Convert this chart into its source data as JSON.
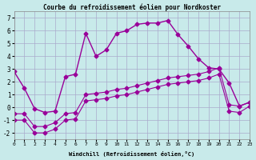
{
  "title": "Courbe du refroidissement éolien pour Nordkoster",
  "xlabel": "Windchill (Refroidissement éolien,°C)",
  "ylabel": "",
  "xlim": [
    0,
    23
  ],
  "ylim": [
    -2.5,
    7.5
  ],
  "xticks": [
    0,
    1,
    2,
    3,
    4,
    5,
    6,
    7,
    8,
    9,
    10,
    11,
    12,
    13,
    14,
    15,
    16,
    17,
    18,
    19,
    20,
    21,
    22,
    23
  ],
  "yticks": [
    -2,
    -1,
    0,
    1,
    2,
    3,
    4,
    5,
    6,
    7
  ],
  "bg_color": "#c8eaea",
  "grid_color": "#aaaacc",
  "line_color": "#990099",
  "main_x": [
    0,
    1,
    2,
    3,
    4,
    5,
    6,
    7,
    8,
    9,
    10,
    11,
    12,
    13,
    14,
    15,
    16,
    17,
    18,
    19,
    20,
    21,
    22,
    23
  ],
  "main_y": [
    2.8,
    1.5,
    -0.1,
    -0.4,
    -0.3,
    2.4,
    2.6,
    5.8,
    4.0,
    4.5,
    5.8,
    6.0,
    6.5,
    6.6,
    6.6,
    6.8,
    5.7,
    4.8,
    3.8,
    3.1,
    3.0,
    1.9,
    0.1,
    0.4
  ],
  "line2_x": [
    0,
    1,
    2,
    3,
    4,
    5,
    6,
    7,
    8,
    9,
    10,
    11,
    12,
    13,
    14,
    15,
    16,
    17,
    18,
    19,
    20,
    21,
    22,
    23
  ],
  "line2_y": [
    -0.5,
    -0.5,
    -1.5,
    -1.5,
    -1.2,
    -0.5,
    -0.4,
    1.0,
    1.1,
    1.2,
    1.4,
    1.5,
    1.7,
    1.9,
    2.1,
    2.3,
    2.4,
    2.5,
    2.6,
    2.8,
    3.1,
    0.2,
    0.1,
    0.4
  ],
  "line3_x": [
    0,
    1,
    2,
    3,
    4,
    5,
    6,
    7,
    8,
    9,
    10,
    11,
    12,
    13,
    14,
    15,
    16,
    17,
    18,
    19,
    20,
    21,
    22,
    23
  ],
  "line3_y": [
    -1.0,
    -1.0,
    -2.0,
    -2.0,
    -1.7,
    -1.0,
    -0.9,
    0.5,
    0.6,
    0.7,
    0.9,
    1.0,
    1.2,
    1.4,
    1.6,
    1.8,
    1.9,
    2.0,
    2.1,
    2.3,
    2.6,
    -0.3,
    -0.4,
    0.1
  ]
}
